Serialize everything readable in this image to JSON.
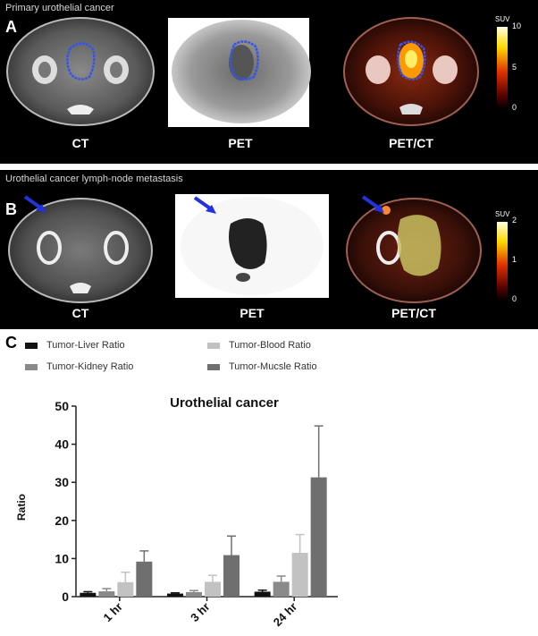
{
  "panel_a": {
    "letter": "A",
    "caption": "Primary urothelial cancer",
    "labels": [
      "CT",
      "PET",
      "PET/CT"
    ],
    "colorbar": {
      "title": "SUV",
      "ticks": [
        "10",
        "5",
        "0"
      ]
    }
  },
  "panel_b": {
    "letter": "B",
    "caption": "Urothelial cancer lymph-node metastasis",
    "labels": [
      "CT",
      "PET",
      "PET/CT"
    ],
    "colorbar": {
      "title": "SUV",
      "ticks": [
        "2",
        "1",
        "0"
      ]
    }
  },
  "panel_c": {
    "letter": "C"
  },
  "colors": {
    "liver": "#111111",
    "kidney": "#8a8a8a",
    "blood": "#c2c2c2",
    "muscle": "#6f6f6f",
    "contour": "#3355ee",
    "arrow": "#2233dd"
  },
  "chart_data": {
    "type": "bar",
    "title": "Urothelial cancer",
    "xlabel": "",
    "ylabel": "Ratio",
    "categories": [
      "1 hr",
      "3 hr",
      "24 hr"
    ],
    "ylim": [
      0,
      50
    ],
    "yticks": [
      "0",
      "10",
      "20",
      "30",
      "40",
      "50"
    ],
    "legend_position": "top",
    "series": [
      {
        "name": "Tumor-Liver Ratio",
        "values": [
          1.0,
          0.8,
          1.3
        ],
        "errors": [
          0.3,
          0.2,
          0.4
        ]
      },
      {
        "name": "Tumor-Kidney Ratio",
        "values": [
          1.4,
          1.2,
          3.9
        ],
        "errors": [
          0.7,
          0.4,
          1.5
        ]
      },
      {
        "name": "Tumor-Blood Ratio",
        "values": [
          3.8,
          3.9,
          11.5
        ],
        "errors": [
          2.6,
          1.7,
          4.8
        ]
      },
      {
        "name": "Tumor-Mucsle Ratio",
        "values": [
          9.2,
          10.9,
          31.3
        ],
        "errors": [
          2.8,
          5.0,
          13.5
        ]
      }
    ]
  }
}
